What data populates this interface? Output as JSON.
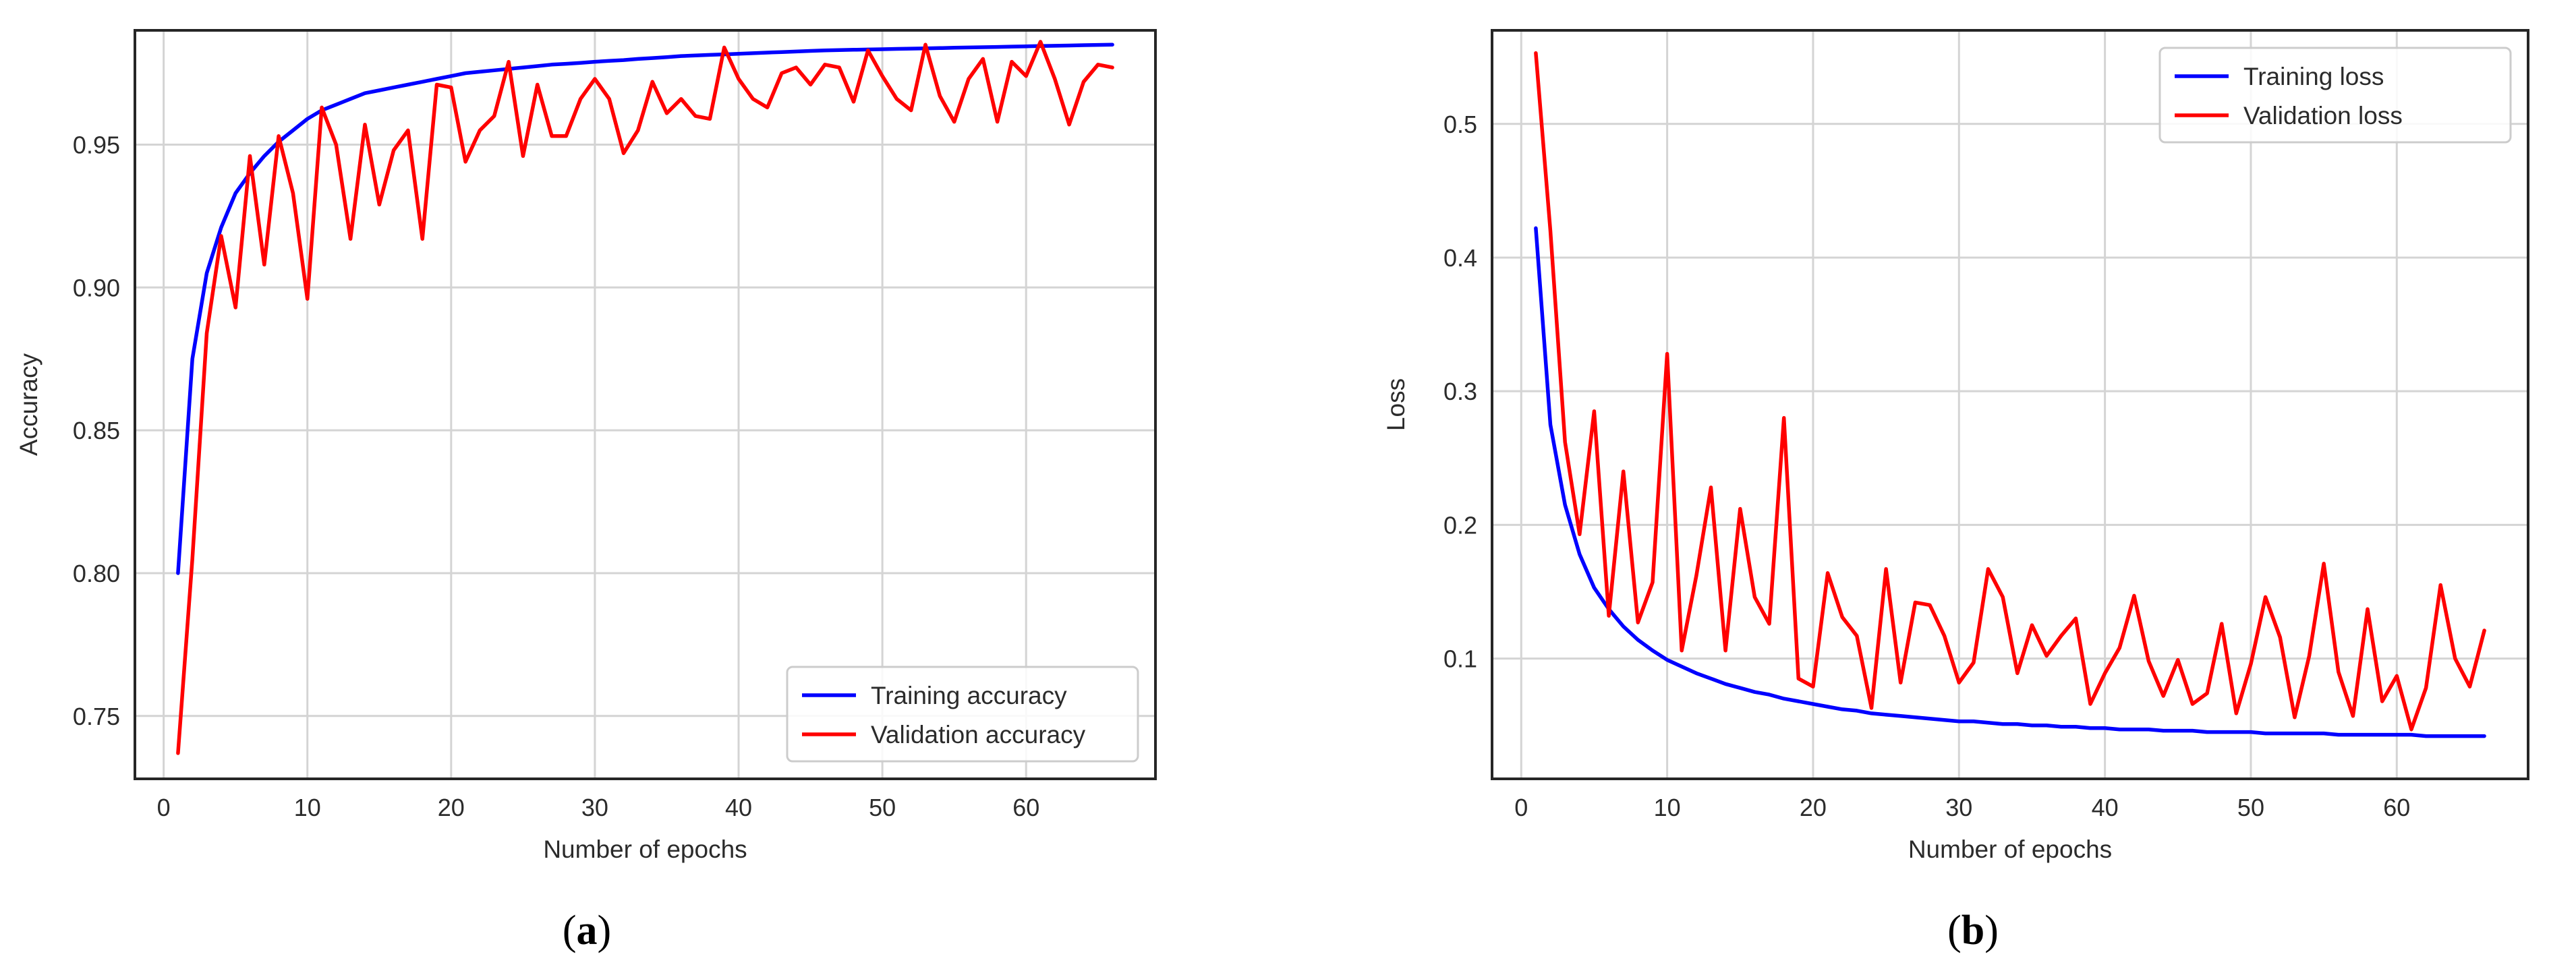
{
  "chart_data": [
    {
      "id": "a",
      "type": "line",
      "caption_open": "(",
      "caption_letter": "a",
      "caption_close": ")",
      "xlabel": "Number of epochs",
      "ylabel": "Accuracy",
      "xlim": [
        -2,
        69
      ],
      "ylim": [
        0.728,
        0.99
      ],
      "xticks": [
        0,
        10,
        20,
        30,
        40,
        50,
        60
      ],
      "xtick_labels": [
        "0",
        "10",
        "20",
        "30",
        "40",
        "50",
        "60"
      ],
      "yticks": [
        0.75,
        0.8,
        0.85,
        0.9,
        0.95
      ],
      "ytick_labels": [
        "0.75",
        "0.80",
        "0.85",
        "0.90",
        "0.95"
      ],
      "grid": true,
      "legend_position": "bottom-right",
      "series": [
        {
          "name": "Training accuracy",
          "color": "#0000ff",
          "x": [
            1,
            2,
            3,
            4,
            5,
            6,
            7,
            8,
            9,
            10,
            11,
            12,
            13,
            14,
            15,
            16,
            17,
            18,
            19,
            20,
            21,
            22,
            23,
            24,
            25,
            26,
            27,
            28,
            29,
            30,
            31,
            32,
            33,
            34,
            35,
            36,
            37,
            38,
            39,
            40,
            41,
            42,
            43,
            44,
            45,
            46,
            47,
            48,
            49,
            50,
            51,
            52,
            53,
            54,
            55,
            56,
            57,
            58,
            59,
            60,
            61,
            62,
            63,
            64,
            65,
            66
          ],
          "y": [
            0.8,
            0.875,
            0.905,
            0.921,
            0.933,
            0.94,
            0.946,
            0.951,
            0.955,
            0.959,
            0.962,
            0.964,
            0.966,
            0.968,
            0.969,
            0.97,
            0.971,
            0.972,
            0.973,
            0.974,
            0.975,
            0.9755,
            0.976,
            0.9765,
            0.977,
            0.9775,
            0.978,
            0.9783,
            0.9786,
            0.979,
            0.9793,
            0.9796,
            0.98,
            0.9803,
            0.9806,
            0.981,
            0.9812,
            0.9814,
            0.9816,
            0.9818,
            0.982,
            0.9822,
            0.9824,
            0.9826,
            0.9828,
            0.983,
            0.9831,
            0.9832,
            0.9833,
            0.9834,
            0.9835,
            0.9836,
            0.9837,
            0.9838,
            0.9839,
            0.984,
            0.9841,
            0.9842,
            0.9843,
            0.9844,
            0.9845,
            0.9846,
            0.9847,
            0.9848,
            0.9849,
            0.985
          ]
        },
        {
          "name": "Validation accuracy",
          "color": "#ff0000",
          "x": [
            1,
            2,
            3,
            4,
            5,
            6,
            7,
            8,
            9,
            10,
            11,
            12,
            13,
            14,
            15,
            16,
            17,
            18,
            19,
            20,
            21,
            22,
            23,
            24,
            25,
            26,
            27,
            28,
            29,
            30,
            31,
            32,
            33,
            34,
            35,
            36,
            37,
            38,
            39,
            40,
            41,
            42,
            43,
            44,
            45,
            46,
            47,
            48,
            49,
            50,
            51,
            52,
            53,
            54,
            55,
            56,
            57,
            58,
            59,
            60,
            61,
            62,
            63,
            64,
            65,
            66
          ],
          "y": [
            0.737,
            0.805,
            0.884,
            0.918,
            0.893,
            0.946,
            0.908,
            0.953,
            0.933,
            0.896,
            0.963,
            0.95,
            0.917,
            0.957,
            0.929,
            0.948,
            0.955,
            0.917,
            0.971,
            0.97,
            0.944,
            0.955,
            0.96,
            0.979,
            0.946,
            0.971,
            0.953,
            0.953,
            0.966,
            0.973,
            0.966,
            0.947,
            0.955,
            0.972,
            0.961,
            0.966,
            0.96,
            0.959,
            0.984,
            0.973,
            0.966,
            0.963,
            0.975,
            0.977,
            0.971,
            0.978,
            0.977,
            0.965,
            0.983,
            0.974,
            0.966,
            0.962,
            0.985,
            0.967,
            0.958,
            0.973,
            0.98,
            0.958,
            0.979,
            0.974,
            0.986,
            0.973,
            0.957,
            0.972,
            0.978,
            0.977
          ]
        }
      ]
    },
    {
      "id": "b",
      "type": "line",
      "caption_open": "(",
      "caption_letter": "b",
      "caption_close": ")",
      "xlabel": "Number of epochs",
      "ylabel": "Loss",
      "xlim": [
        -2,
        69
      ],
      "ylim": [
        0.01,
        0.57
      ],
      "xticks": [
        0,
        10,
        20,
        30,
        40,
        50,
        60
      ],
      "xtick_labels": [
        "0",
        "10",
        "20",
        "30",
        "40",
        "50",
        "60"
      ],
      "yticks": [
        0.1,
        0.2,
        0.3,
        0.4,
        0.5
      ],
      "ytick_labels": [
        "0.1",
        "0.2",
        "0.3",
        "0.4",
        "0.5"
      ],
      "grid": true,
      "legend_position": "top-right",
      "series": [
        {
          "name": "Training loss",
          "color": "#0000ff",
          "x": [
            1,
            2,
            3,
            4,
            5,
            6,
            7,
            8,
            9,
            10,
            11,
            12,
            13,
            14,
            15,
            16,
            17,
            18,
            19,
            20,
            21,
            22,
            23,
            24,
            25,
            26,
            27,
            28,
            29,
            30,
            31,
            32,
            33,
            34,
            35,
            36,
            37,
            38,
            39,
            40,
            41,
            42,
            43,
            44,
            45,
            46,
            47,
            48,
            49,
            50,
            51,
            52,
            53,
            54,
            55,
            56,
            57,
            58,
            59,
            60,
            61,
            62,
            63,
            64,
            65,
            66
          ],
          "y": [
            0.422,
            0.275,
            0.215,
            0.178,
            0.153,
            0.137,
            0.124,
            0.114,
            0.106,
            0.099,
            0.094,
            0.089,
            0.085,
            0.081,
            0.078,
            0.075,
            0.073,
            0.07,
            0.068,
            0.066,
            0.064,
            0.062,
            0.061,
            0.059,
            0.058,
            0.057,
            0.056,
            0.055,
            0.054,
            0.053,
            0.053,
            0.052,
            0.051,
            0.051,
            0.05,
            0.05,
            0.049,
            0.049,
            0.048,
            0.048,
            0.047,
            0.047,
            0.047,
            0.046,
            0.046,
            0.046,
            0.045,
            0.045,
            0.045,
            0.045,
            0.044,
            0.044,
            0.044,
            0.044,
            0.044,
            0.043,
            0.043,
            0.043,
            0.043,
            0.043,
            0.043,
            0.042,
            0.042,
            0.042,
            0.042,
            0.042
          ]
        },
        {
          "name": "Validation loss",
          "color": "#ff0000",
          "x": [
            1,
            2,
            3,
            4,
            5,
            6,
            7,
            8,
            9,
            10,
            11,
            12,
            13,
            14,
            15,
            16,
            17,
            18,
            19,
            20,
            21,
            22,
            23,
            24,
            25,
            26,
            27,
            28,
            29,
            30,
            31,
            32,
            33,
            34,
            35,
            36,
            37,
            38,
            39,
            40,
            41,
            42,
            43,
            44,
            45,
            46,
            47,
            48,
            49,
            50,
            51,
            52,
            53,
            54,
            55,
            56,
            57,
            58,
            59,
            60,
            61,
            62,
            63,
            64,
            65,
            66
          ],
          "y": [
            0.553,
            0.42,
            0.262,
            0.193,
            0.285,
            0.132,
            0.24,
            0.127,
            0.157,
            0.328,
            0.106,
            0.162,
            0.228,
            0.106,
            0.212,
            0.146,
            0.126,
            0.28,
            0.085,
            0.079,
            0.164,
            0.131,
            0.117,
            0.063,
            0.167,
            0.082,
            0.142,
            0.14,
            0.117,
            0.082,
            0.097,
            0.167,
            0.146,
            0.089,
            0.125,
            0.102,
            0.117,
            0.13,
            0.066,
            0.089,
            0.108,
            0.147,
            0.098,
            0.072,
            0.099,
            0.066,
            0.074,
            0.126,
            0.059,
            0.096,
            0.146,
            0.116,
            0.056,
            0.102,
            0.171,
            0.09,
            0.057,
            0.137,
            0.068,
            0.087,
            0.047,
            0.078,
            0.155,
            0.1,
            0.079,
            0.121
          ]
        }
      ]
    }
  ]
}
